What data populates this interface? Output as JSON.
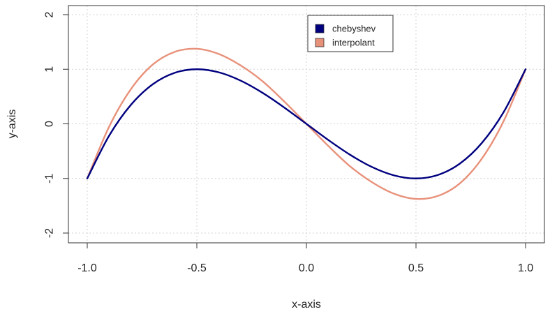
{
  "chart_data": {
    "type": "line",
    "xlabel": "x-axis",
    "ylabel": "y-axis",
    "xlim": [
      -1.0,
      1.0
    ],
    "ylim": [
      -2,
      2
    ],
    "x_ticks": [
      -1.0,
      -0.5,
      0.0,
      0.5,
      1.0
    ],
    "x_tick_labels": [
      "-1.0",
      "-0.5",
      "0.0",
      "0.5",
      "1.0"
    ],
    "y_ticks": [
      -2,
      -1,
      0,
      1,
      2
    ],
    "y_tick_labels": [
      "-2",
      "-1",
      "0",
      "1",
      "2"
    ],
    "grid": true,
    "legend_position": "top-center",
    "series": [
      {
        "name": "chebyshev",
        "color": "#00007f",
        "x": [
          -1.0,
          -0.9,
          -0.8,
          -0.7,
          -0.6,
          -0.5,
          -0.4,
          -0.3,
          -0.2,
          -0.1,
          0.0,
          0.1,
          0.2,
          0.3,
          0.4,
          0.5,
          0.6,
          0.7,
          0.8,
          0.9,
          1.0
        ],
        "y": [
          -1.0,
          -0.216,
          0.352,
          0.728,
          0.936,
          1.0,
          0.944,
          0.792,
          0.568,
          0.296,
          0.0,
          -0.296,
          -0.568,
          -0.792,
          -0.944,
          -1.0,
          -0.936,
          -0.728,
          -0.352,
          0.216,
          1.0
        ]
      },
      {
        "name": "interpolant",
        "color": "#e8917a",
        "x": [
          -1.0,
          -0.9,
          -0.8,
          -0.7,
          -0.6,
          -0.5,
          -0.4,
          -0.3,
          -0.2,
          -0.1,
          0.0,
          0.1,
          0.2,
          0.3,
          0.4,
          0.5,
          0.6,
          0.7,
          0.8,
          0.9,
          1.0
        ],
        "y": [
          -1.0,
          -0.05,
          0.64,
          1.09,
          1.32,
          1.375,
          1.28,
          1.07,
          0.78,
          0.405,
          0.0,
          -0.405,
          -0.78,
          -1.07,
          -1.28,
          -1.375,
          -1.32,
          -1.09,
          -0.64,
          0.05,
          1.0
        ]
      }
    ]
  }
}
